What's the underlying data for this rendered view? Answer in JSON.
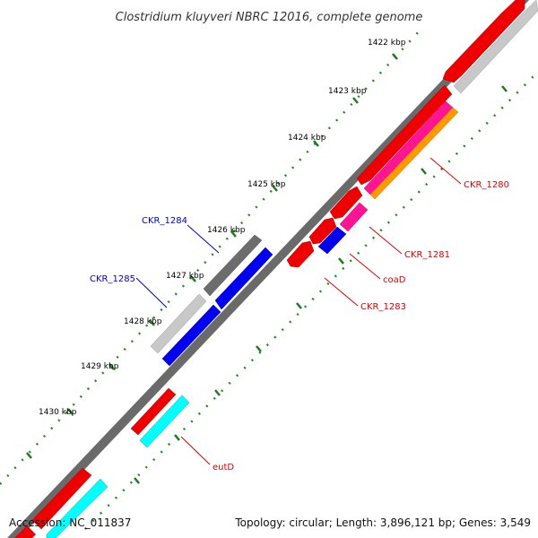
{
  "title": "Clostridium kluyveri NBRC 12016, complete genome",
  "footer": {
    "accession": "Accession: NC_011837",
    "summary": "Topology: circular; Length: 3,896,121 bp; Genes: 3,549"
  },
  "ticks": [
    "1422 kbp",
    "1423 kbp",
    "1424 kbp",
    "1425 kbp",
    "1426 kbp",
    "1427 kbp",
    "1428 kbp",
    "1429 kbp",
    "1430 kbp"
  ],
  "genes": [
    {
      "label": "CKR_1280",
      "color": "#dd0000"
    },
    {
      "label": "CKR_1281",
      "color": "#dd0000"
    },
    {
      "label": "coaD",
      "color": "#dd0000"
    },
    {
      "label": "CKR_1283",
      "color": "#dd0000"
    },
    {
      "label": "CKR_1284",
      "color": "#0000cc"
    },
    {
      "label": "CKR_1285",
      "color": "#0000cc"
    },
    {
      "label": "eutD",
      "color": "#dd0000"
    }
  ],
  "colors": {
    "backbone": "#808080",
    "forward_strand": "#ff0000",
    "reverse_strand": "#0000ee",
    "cyan_feature": "#00ffff",
    "magenta_feature": "#ff1493",
    "orange_feature": "#ff9900",
    "gray_dark": "#666666",
    "gray_light": "#c8c8c8",
    "tick_dots": "#228b22"
  }
}
